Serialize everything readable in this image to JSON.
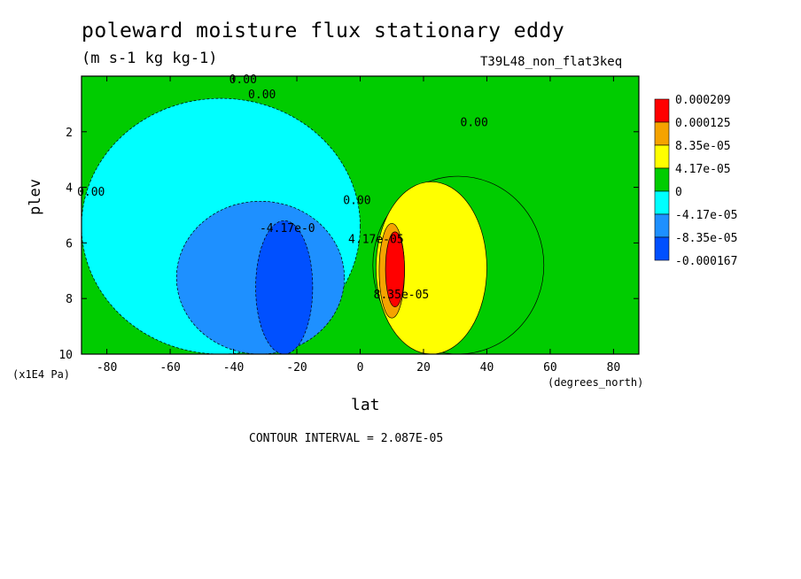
{
  "chart_data": {
    "type": "heatmap",
    "title": "poleward moisture flux stationary eddy",
    "units": "(m s-1 kg kg-1)",
    "run_label": "T39L48_non_flat3keq",
    "xlabel": "lat",
    "xunit": "(degrees_north)",
    "ylabel": "plev",
    "yunit": "(x1E4 Pa)",
    "xlim": [
      -88,
      88
    ],
    "ylim": [
      0,
      10
    ],
    "y_inverted": true,
    "x_ticks": [
      -80,
      -60,
      -40,
      -20,
      0,
      20,
      40,
      60,
      80
    ],
    "x_tick_labels": [
      "-80",
      "-60",
      "-40",
      "-20",
      "0",
      "20",
      "40",
      "60",
      "80"
    ],
    "y_ticks": [
      2,
      4,
      6,
      8,
      10
    ],
    "y_tick_labels": [
      "2",
      "4",
      "6",
      "8",
      "10"
    ],
    "legend": {
      "placement": "right",
      "levels": [
        "0.000209",
        "0.000125",
        "8.35e-05",
        "4.17e-05",
        "0",
        "-4.17e-05",
        "-8.35e-05",
        "-0.000167"
      ],
      "colors": [
        "#ff0000",
        "#f5a300",
        "#ffff00",
        "#00cc00",
        "#00ffff",
        "#1e90ff",
        "#0050ff"
      ]
    },
    "contour_labels": [
      {
        "text": "0.00",
        "lat": -37,
        "plev": 0.25
      },
      {
        "text": "0.00",
        "lat": -31,
        "plev": 0.8
      },
      {
        "text": "0.00",
        "lat": 36,
        "plev": 1.8
      },
      {
        "text": "0.00",
        "lat": -85,
        "plev": 4.3
      },
      {
        "text": "0.00",
        "lat": -1,
        "plev": 4.6
      },
      {
        "text": "-4.17e-0",
        "lat": -23,
        "plev": 5.6
      },
      {
        "text": "4.17e-05",
        "lat": 5,
        "plev": 6.0
      },
      {
        "text": "8.35e-05",
        "lat": 13,
        "plev": 8.0
      }
    ],
    "contour_interval_text": "CONTOUR INTERVAL = 2.087E-05",
    "field_regions": [
      {
        "level": "-4.17e-05",
        "lat": [
          -88,
          0
        ],
        "plev": [
          0.8,
          10
        ]
      },
      {
        "level": "-8.35e-05",
        "lat": [
          -58,
          -5
        ],
        "plev": [
          4.5,
          10
        ]
      },
      {
        "level": "-0.000167",
        "lat": [
          -33,
          -15
        ],
        "plev": [
          5.2,
          10
        ]
      },
      {
        "level": "4.17e-05",
        "lat": [
          4,
          58
        ],
        "plev": [
          3.6,
          10
        ]
      },
      {
        "level": "8.35e-05",
        "lat": [
          5,
          40
        ],
        "plev": [
          3.8,
          10
        ]
      },
      {
        "level": "0.000125",
        "lat": [
          6,
          14
        ],
        "plev": [
          5.3,
          8.7
        ]
      },
      {
        "level": "0.000209",
        "lat": [
          8,
          14
        ],
        "plev": [
          5.6,
          8.3
        ]
      }
    ]
  }
}
